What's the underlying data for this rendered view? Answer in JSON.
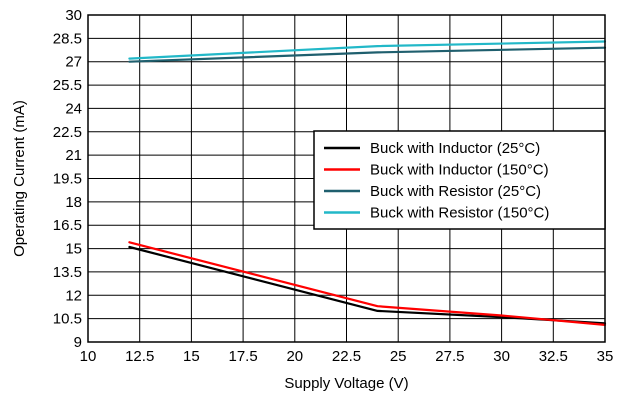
{
  "chart_data": {
    "type": "line",
    "xlabel": "Supply Voltage (V)",
    "ylabel": "Operating Current (mA)",
    "xlim": [
      10,
      35
    ],
    "ylim": [
      9,
      30
    ],
    "x_ticks": [
      "10",
      "12.5",
      "15",
      "17.5",
      "20",
      "22.5",
      "25",
      "27.5",
      "30",
      "32.5",
      "35"
    ],
    "y_ticks": [
      "9",
      "10.5",
      "12",
      "13.5",
      "15",
      "16.5",
      "18",
      "19.5",
      "21",
      "22.5",
      "24",
      "25.5",
      "27",
      "28.5",
      "30"
    ],
    "grid": true,
    "legend_position": "center-right",
    "series": [
      {
        "name": "Buck with Inductor (25°C)",
        "color": "#000000",
        "points": [
          [
            12,
            15.1
          ],
          [
            24,
            11.0
          ],
          [
            30,
            10.6
          ],
          [
            35,
            10.2
          ]
        ]
      },
      {
        "name": "Buck with Inductor (150°C)",
        "color": "#ff0000",
        "points": [
          [
            12,
            15.4
          ],
          [
            24,
            11.3
          ],
          [
            30,
            10.7
          ],
          [
            35,
            10.1
          ]
        ]
      },
      {
        "name": "Buck with Resistor (25°C)",
        "color": "#1f5f6e",
        "points": [
          [
            12,
            27.0
          ],
          [
            24,
            27.6
          ],
          [
            35,
            27.9
          ]
        ]
      },
      {
        "name": "Buck with Resistor (150°C)",
        "color": "#22b8c8",
        "points": [
          [
            12,
            27.2
          ],
          [
            24,
            28.0
          ],
          [
            35,
            28.3
          ]
        ]
      }
    ]
  }
}
